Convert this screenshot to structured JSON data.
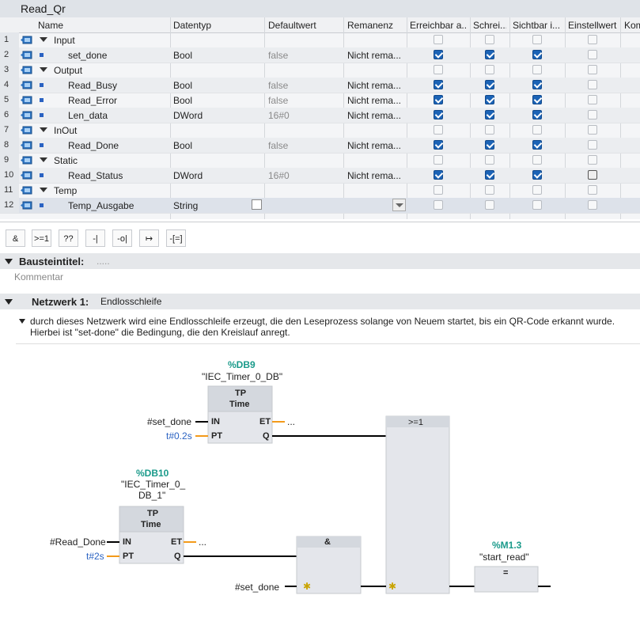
{
  "block_title": "Read_Qr",
  "columns": [
    "Name",
    "Datentyp",
    "Defaultwert",
    "Remanenz",
    "Erreichbar a...",
    "Schrei...",
    "Sichtbar i...",
    "Einstellwert",
    "Kom"
  ],
  "rows": [
    {
      "num": "1",
      "name": "Input",
      "type": "",
      "default": "",
      "retain": "",
      "section": true,
      "c": [
        0,
        0,
        0,
        0
      ]
    },
    {
      "num": "2",
      "name": "set_done",
      "type": "Bool",
      "default": "false",
      "retain": "Nicht rema...",
      "section": false,
      "c": [
        1,
        1,
        1,
        0
      ]
    },
    {
      "num": "3",
      "name": "Output",
      "type": "",
      "default": "",
      "retain": "",
      "section": true,
      "c": [
        0,
        0,
        0,
        0
      ]
    },
    {
      "num": "4",
      "name": "Read_Busy",
      "type": "Bool",
      "default": "false",
      "retain": "Nicht rema...",
      "section": false,
      "c": [
        1,
        1,
        1,
        0
      ]
    },
    {
      "num": "5",
      "name": "Read_Error",
      "type": "Bool",
      "default": "false",
      "retain": "Nicht rema...",
      "section": false,
      "c": [
        1,
        1,
        1,
        0
      ]
    },
    {
      "num": "6",
      "name": "Len_data",
      "type": "DWord",
      "default": "16#0",
      "retain": "Nicht rema...",
      "section": false,
      "c": [
        1,
        1,
        1,
        0
      ]
    },
    {
      "num": "7",
      "name": "InOut",
      "type": "",
      "default": "",
      "retain": "",
      "section": true,
      "c": [
        0,
        0,
        0,
        0
      ]
    },
    {
      "num": "8",
      "name": "Read_Done",
      "type": "Bool",
      "default": "false",
      "retain": "Nicht rema...",
      "section": false,
      "c": [
        1,
        1,
        1,
        0
      ]
    },
    {
      "num": "9",
      "name": "Static",
      "type": "",
      "default": "",
      "retain": "",
      "section": true,
      "c": [
        0,
        0,
        0,
        0
      ]
    },
    {
      "num": "10",
      "name": "Read_Status",
      "type": "DWord",
      "default": "16#0",
      "retain": "Nicht rema...",
      "section": false,
      "c": [
        1,
        1,
        1,
        2
      ]
    },
    {
      "num": "11",
      "name": "Temp",
      "type": "",
      "default": "",
      "retain": "",
      "section": true,
      "c": [
        0,
        0,
        0,
        0
      ]
    },
    {
      "num": "12",
      "name": "Temp_Ausgabe",
      "type": "String",
      "default": "",
      "retain": "",
      "section": false,
      "c": [
        0,
        0,
        0,
        0
      ]
    }
  ],
  "toolbar": [
    "&",
    ">=1",
    "??",
    "-|",
    "-o|",
    "↦",
    "-[=]"
  ],
  "block_header": {
    "label": "Bausteintitel:",
    "value": ".....",
    "comment": "Kommentar"
  },
  "network": {
    "label": "Netzwerk 1:",
    "title": "Endlosschleife",
    "comment_line1": "durch dieses Netzwerk wird eine Endlosschleife erzeugt, die den Leseprozess solange von Neuem startet, bis ein QR-Code erkannt wurde.",
    "comment_line2": "Hierbei ist \"set-done\" die Bedingung, die den Kreislauf anregt."
  },
  "ladder": {
    "t1_addr": "%DB9",
    "t1_name": "\"IEC_Timer_0_DB\"",
    "t1_type": "TP",
    "t1_time": "Time",
    "t1_in": "#set_done",
    "t1_pt": "t#0.2s",
    "t1_et": "...",
    "t2_addr": "%DB10",
    "t2_name1": "\"IEC_Timer_0_",
    "t2_name2": "DB_1\"",
    "t2_type": "TP",
    "t2_time": "Time",
    "t2_in": "#Read_Done",
    "t2_pt": "t#2s",
    "t2_et": "...",
    "pin_in": "IN",
    "pin_pt": "PT",
    "pin_et": "ET",
    "pin_q": "Q",
    "and_label": "&",
    "or_label": ">=1",
    "and_in": "#set_done",
    "coil_addr": "%M1.3",
    "coil_name": "\"start_read\"",
    "coil_label": "="
  }
}
